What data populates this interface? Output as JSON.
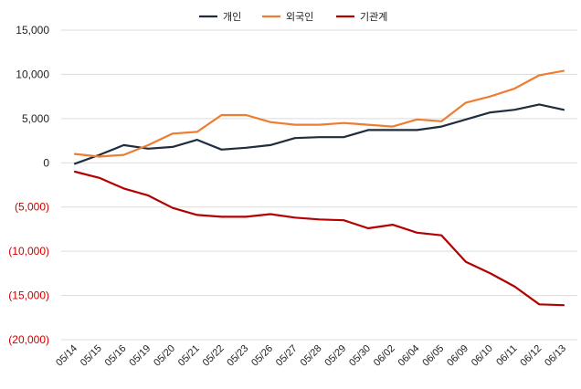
{
  "chart_data": {
    "type": "line",
    "categories": [
      "05/14",
      "05/15",
      "05/16",
      "05/19",
      "05/20",
      "05/21",
      "05/22",
      "05/23",
      "05/26",
      "05/27",
      "05/28",
      "05/29",
      "05/30",
      "06/02",
      "06/04",
      "06/05",
      "06/09",
      "06/10",
      "06/11",
      "06/12",
      "06/13"
    ],
    "series": [
      {
        "name": "개인",
        "color": "#1f2d3d",
        "values": [
          -100,
          900,
          2000,
          1600,
          1800,
          2600,
          1500,
          1700,
          2000,
          2800,
          2900,
          2900,
          3700,
          3700,
          3700,
          4100,
          4900,
          5700,
          6000,
          6600,
          6000
        ]
      },
      {
        "name": "외국인",
        "color": "#ed7d31",
        "values": [
          1000,
          700,
          900,
          2000,
          3300,
          3500,
          5400,
          5400,
          4600,
          4300,
          4300,
          4500,
          4300,
          4100,
          4900,
          4700,
          6800,
          7500,
          8400,
          9900,
          10400
        ]
      },
      {
        "name": "기관계",
        "color": "#b30000",
        "values": [
          -1000,
          -1700,
          -2900,
          -3700,
          -5100,
          -5900,
          -6100,
          -6100,
          -5800,
          -6200,
          -6400,
          -6500,
          -7400,
          -7000,
          -7900,
          -8200,
          -11200,
          -12500,
          -14000,
          -16000,
          -16100
        ]
      }
    ],
    "ylim": [
      -20000,
      15000
    ],
    "yticks": [
      15000,
      10000,
      5000,
      0,
      -5000,
      -10000,
      -15000,
      -20000
    ],
    "ytick_labels": [
      "15,000",
      "10,000",
      "5,000",
      "0",
      "(5,000)",
      "(10,000)",
      "(15,000)",
      "(20,000)"
    ],
    "positive_tick_color": "#222222",
    "negative_tick_color": "#cc0000",
    "grid": true,
    "legend_position": "top-center",
    "title": "",
    "xlabel": "",
    "ylabel": ""
  }
}
